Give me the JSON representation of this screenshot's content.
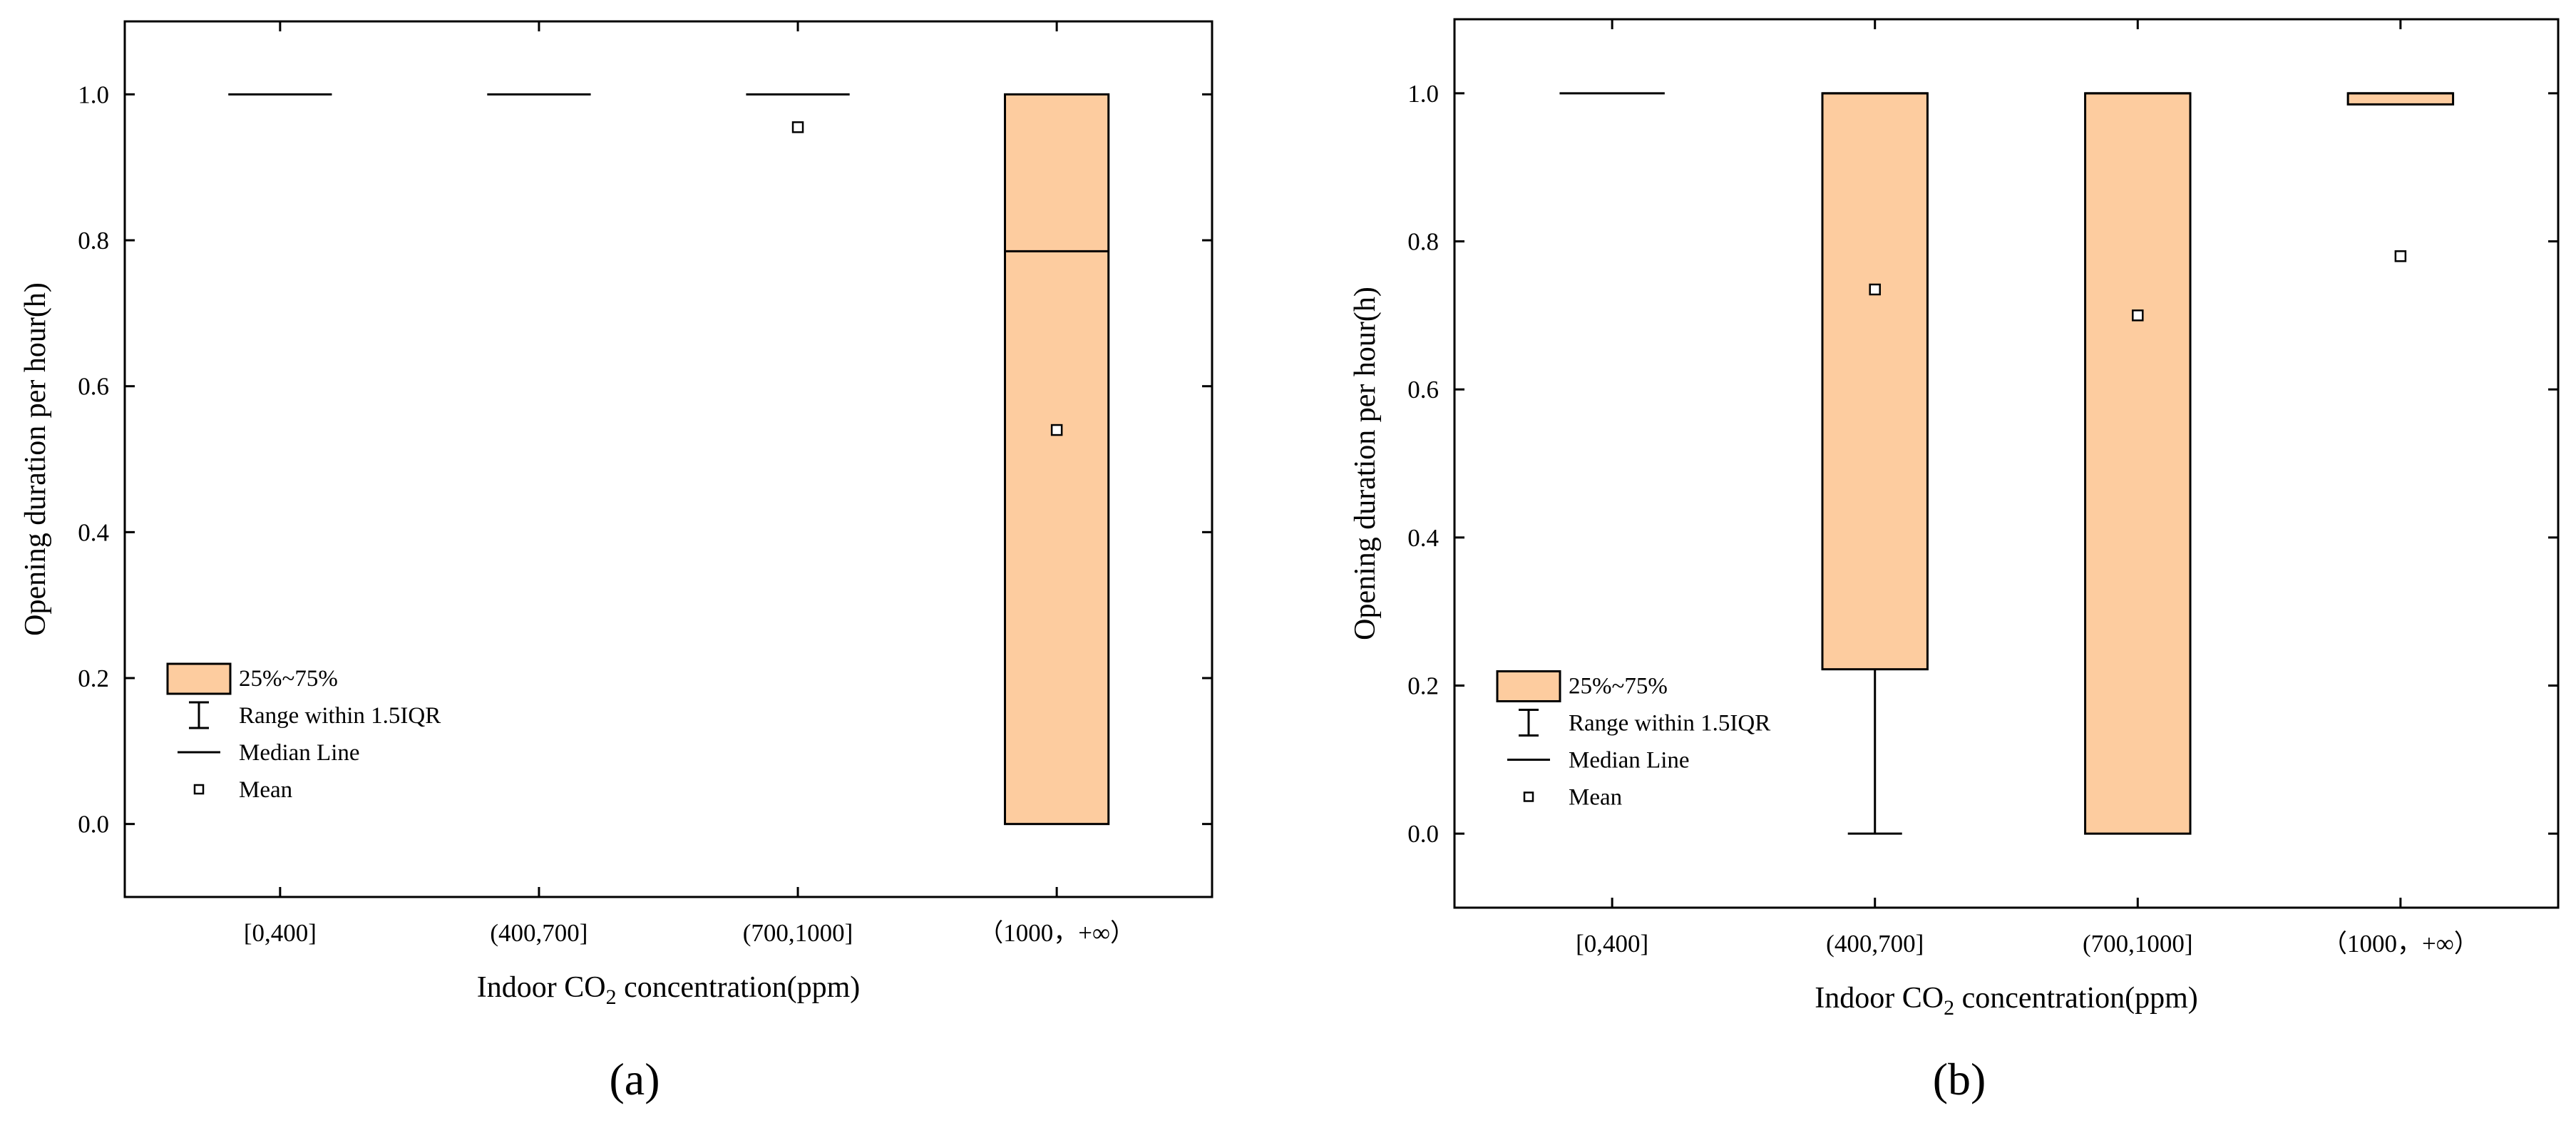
{
  "colors": {
    "box_fill": "#fdcc9f",
    "stroke": "#000000"
  },
  "legend": {
    "box": "25%~75%",
    "whisker": "Range within 1.5IQR",
    "median": "Median Line",
    "mean": "Mean"
  },
  "panel_labels": [
    "(a)",
    "(b)"
  ],
  "chart_data": [
    {
      "type": "box",
      "panel": "(a)",
      "xlabel_prefix": "Indoor CO",
      "xlabel_sub": "2",
      "xlabel_suffix": " concentration(ppm)",
      "ylabel": "Opening duration per hour(h)",
      "ylim": [
        -0.1,
        1.1
      ],
      "yticks": [
        "0.0",
        "0.2",
        "0.4",
        "0.6",
        "0.8",
        "1.0"
      ],
      "categories": [
        "[0,400]",
        "(400,700]",
        "(700,1000]",
        "（1000，+∞）"
      ],
      "boxes": [
        {
          "q1": 1.0,
          "median": 1.0,
          "q3": 1.0,
          "whisker_low": 1.0,
          "whisker_high": 1.0,
          "mean": 1.0,
          "show_mean": false
        },
        {
          "q1": 1.0,
          "median": 1.0,
          "q3": 1.0,
          "whisker_low": 1.0,
          "whisker_high": 1.0,
          "mean": 1.0,
          "show_mean": false
        },
        {
          "q1": 1.0,
          "median": 1.0,
          "q3": 1.0,
          "whisker_low": 1.0,
          "whisker_high": 1.0,
          "mean": 0.955,
          "show_mean": true
        },
        {
          "q1": 0.0,
          "median": 0.785,
          "q3": 1.0,
          "whisker_low": 0.0,
          "whisker_high": 1.0,
          "mean": 0.54,
          "show_mean": true
        }
      ],
      "legend_loc": "lower-left",
      "grid": false
    },
    {
      "type": "box",
      "panel": "(b)",
      "xlabel_prefix": "Indoor CO",
      "xlabel_sub": "2",
      "xlabel_suffix": " concentration(ppm)",
      "ylabel": "Opening duration per hour(h)",
      "ylim": [
        -0.1,
        1.1
      ],
      "yticks": [
        "0.0",
        "0.2",
        "0.4",
        "0.6",
        "0.8",
        "1.0"
      ],
      "categories": [
        "[0,400]",
        "(400,700]",
        "(700,1000]",
        "（1000，+∞）"
      ],
      "boxes": [
        {
          "q1": 1.0,
          "median": 1.0,
          "q3": 1.0,
          "whisker_low": 1.0,
          "whisker_high": 1.0,
          "mean": 1.0,
          "show_mean": false
        },
        {
          "q1": 0.222,
          "median": 1.0,
          "q3": 1.0,
          "whisker_low": 0.0,
          "whisker_high": 1.0,
          "mean": 0.735,
          "show_mean": true
        },
        {
          "q1": 0.0,
          "median": 1.0,
          "q3": 1.0,
          "whisker_low": 0.0,
          "whisker_high": 1.0,
          "mean": 0.7,
          "show_mean": true
        },
        {
          "q1": 0.985,
          "median": 1.0,
          "q3": 1.0,
          "whisker_low": 0.985,
          "whisker_high": 1.0,
          "mean": 0.78,
          "show_mean": true
        }
      ],
      "legend_loc": "lower-left",
      "grid": false
    }
  ]
}
